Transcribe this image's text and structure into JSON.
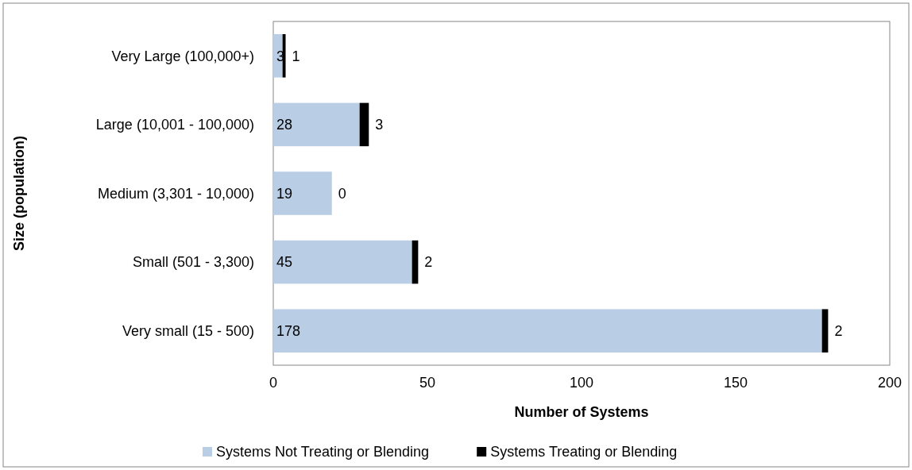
{
  "chart_data": {
    "type": "bar",
    "orientation": "horizontal",
    "stacked": true,
    "xlabel": "Number of Systems",
    "ylabel": "Size (population)",
    "categories": [
      "Very Large (100,000+)",
      "Large (10,001 - 100,000)",
      "Medium (3,301 - 10,000)",
      "Small (501 - 3,300)",
      "Very small (15 - 500)"
    ],
    "series": [
      {
        "name": "Systems Not Treating or Blending",
        "color": "#b9cde5",
        "values": [
          3,
          28,
          19,
          45,
          178
        ]
      },
      {
        "name": "Systems Treating or Blending",
        "color": "#000000",
        "values": [
          1,
          3,
          0,
          2,
          2
        ]
      }
    ],
    "xlim": [
      0,
      200
    ],
    "xticks": [
      0,
      50,
      100,
      150,
      200
    ],
    "grid": false,
    "legend": "bottom",
    "data_labels": true
  }
}
